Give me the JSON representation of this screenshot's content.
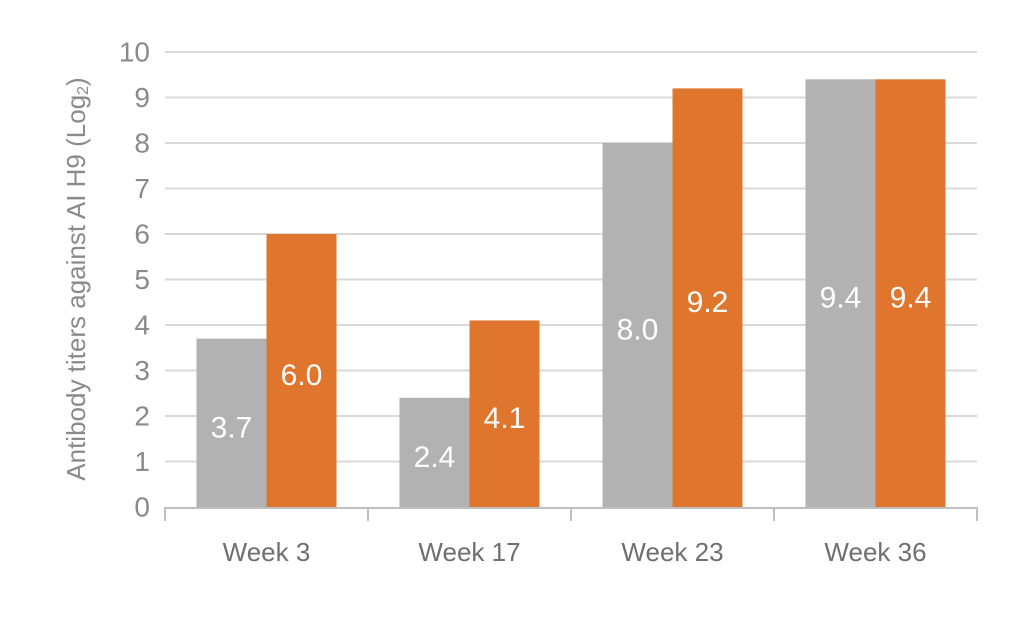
{
  "chart_data": {
    "type": "bar",
    "categories": [
      "Week 3",
      "Week 17",
      "Week 23",
      "Week 36"
    ],
    "series": [
      {
        "values": [
          3.7,
          2.4,
          8.0,
          9.4
        ],
        "color": "#b2b2b2",
        "labels": [
          "3.7",
          "2.4",
          "8.0",
          "9.4"
        ]
      },
      {
        "values": [
          6.0,
          4.1,
          9.2,
          9.4
        ],
        "color": "#e0762d",
        "labels": [
          "6.0",
          "4.1",
          "9.2",
          "9.4"
        ]
      }
    ],
    "ylabel": "Antibody titers against AI H9 (Log",
    "ylabel_subscript": "2",
    "ylabel_suffix": ")",
    "ylim": [
      0,
      10
    ],
    "yticks": [
      "0",
      "1",
      "2",
      "3",
      "4",
      "5",
      "6",
      "7",
      "8",
      "9",
      "10"
    ],
    "grid": true,
    "gridline_color": "#d9d9d9",
    "axis_color": "#bfbfbf"
  }
}
